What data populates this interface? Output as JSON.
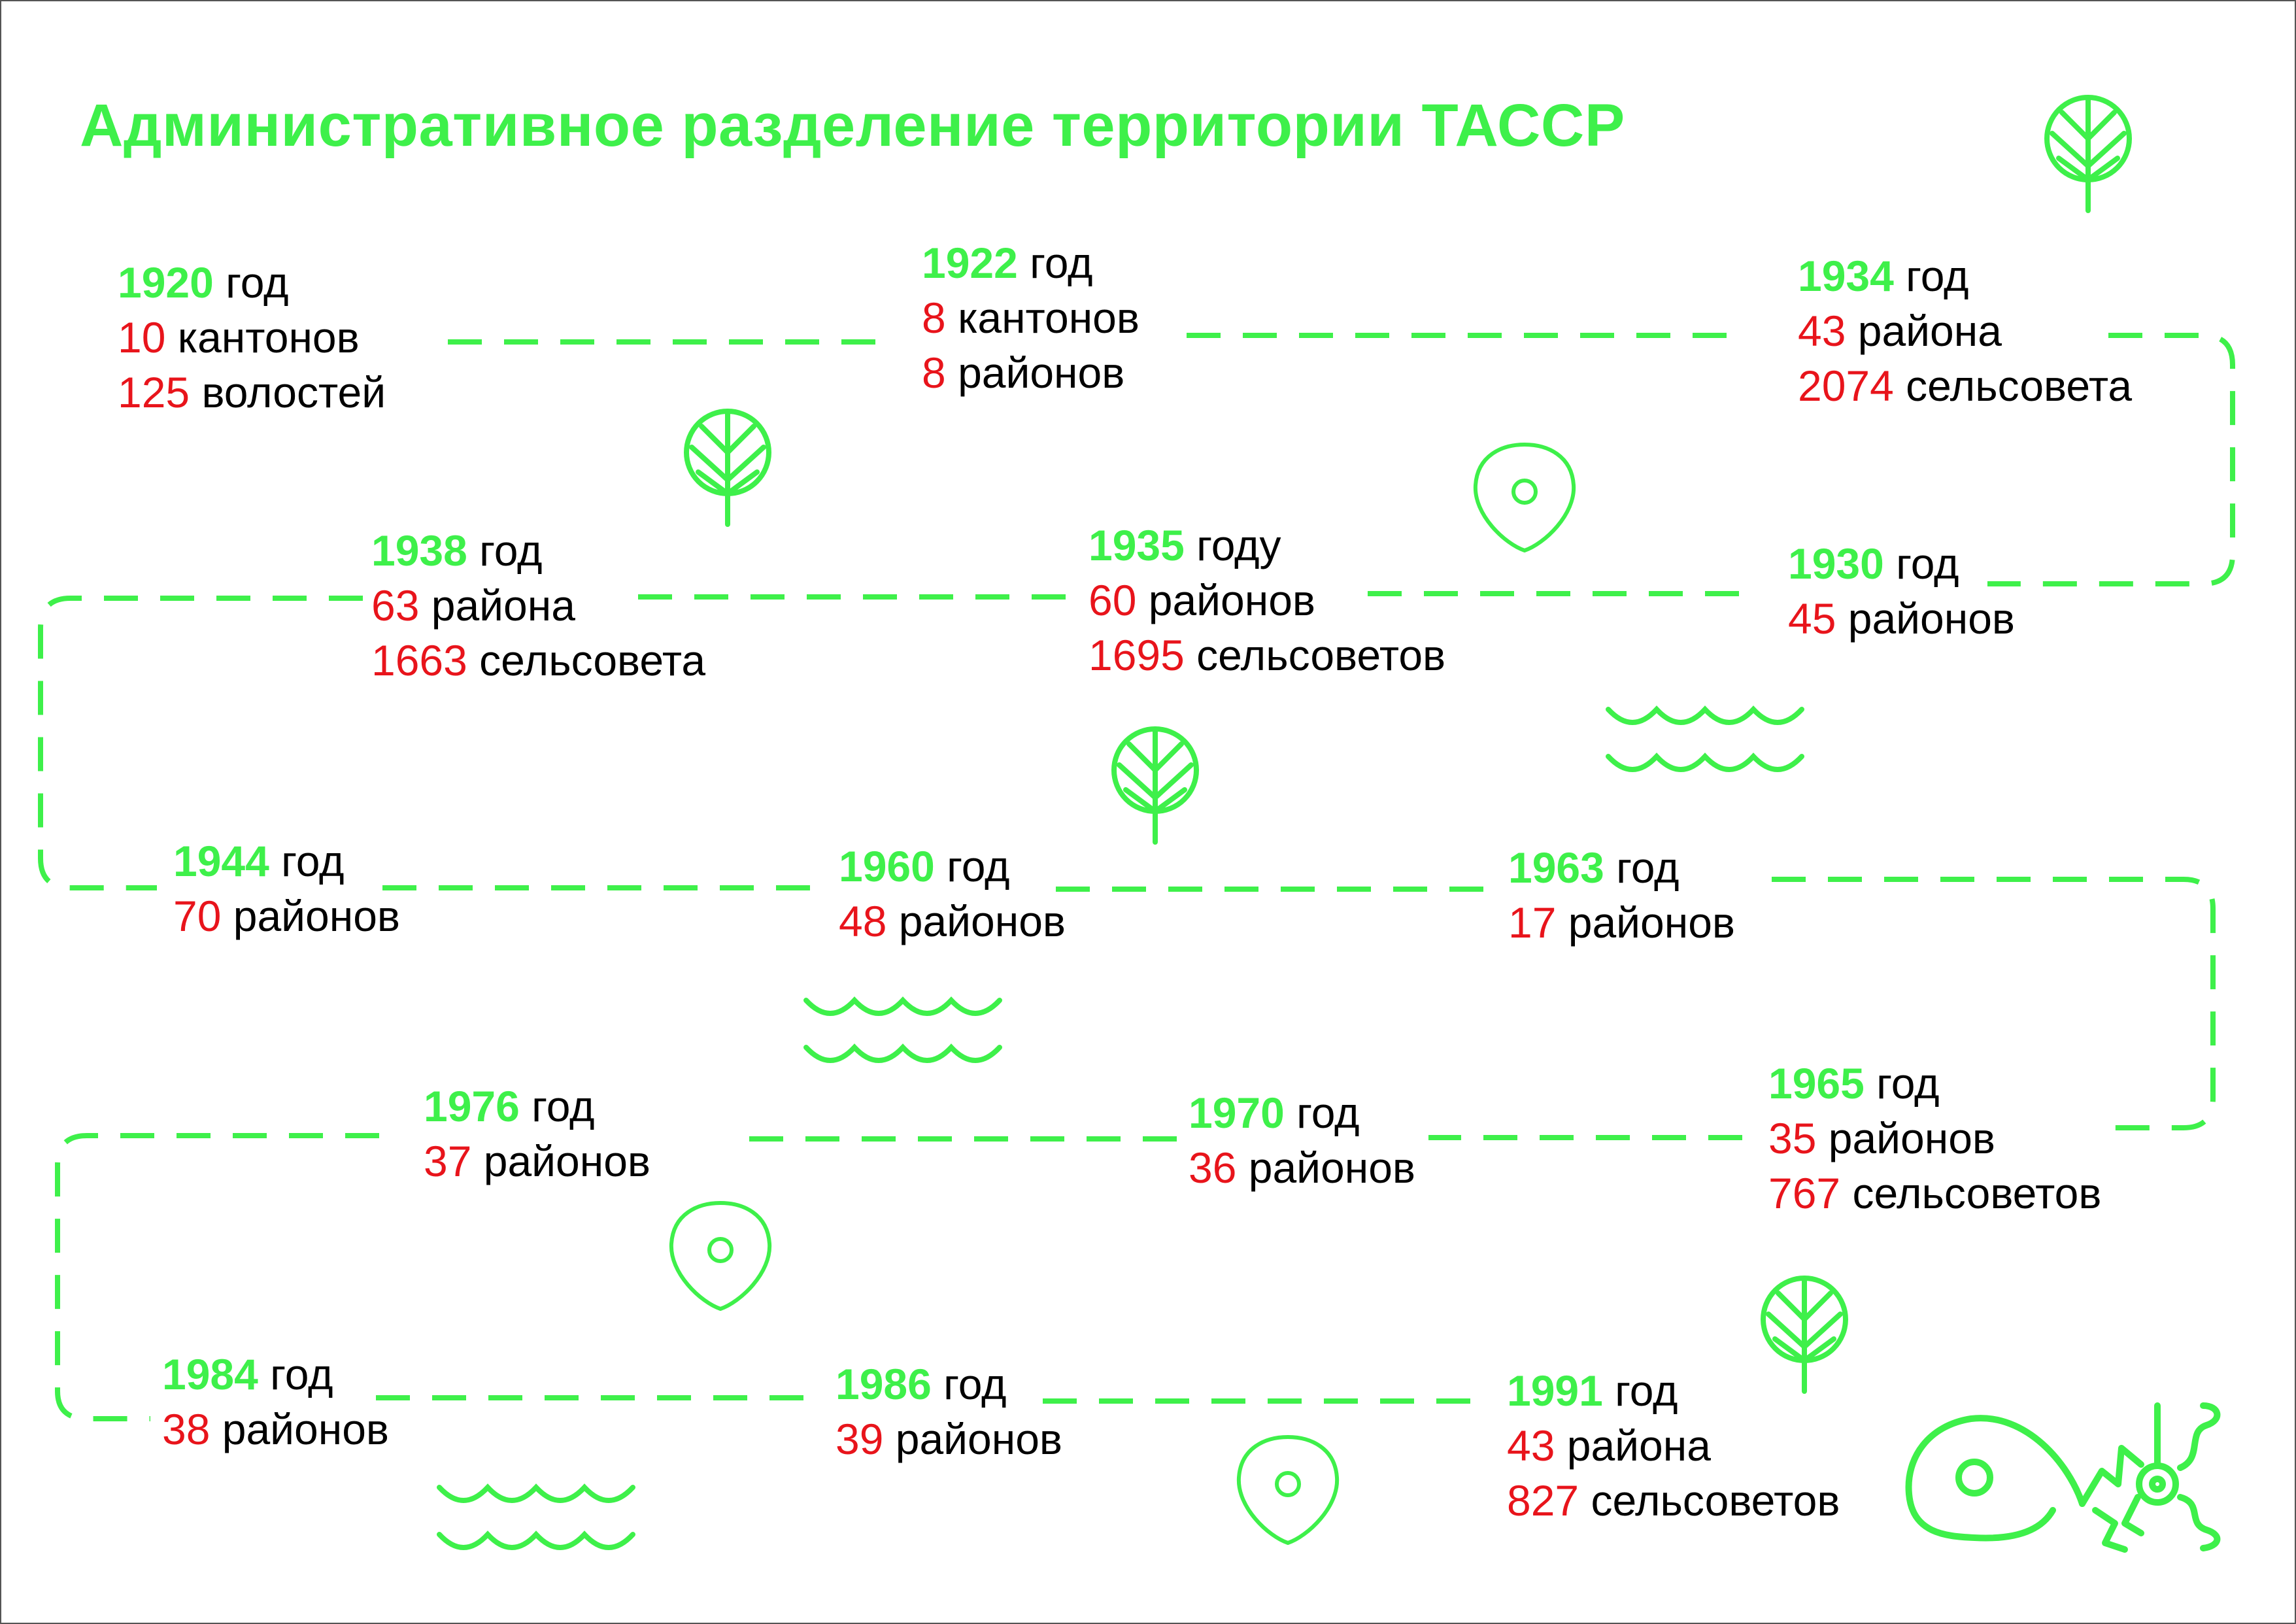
{
  "colors": {
    "accent": "#3ef04a",
    "number": "#e8141b",
    "text": "#000000"
  },
  "title": "Административное разделение территории ТАССР",
  "entries": [
    {
      "year": "1920",
      "year_word": "год",
      "lines": [
        {
          "num": "10",
          "text": "кантонов"
        },
        {
          "num": "125",
          "text": "волостей"
        }
      ]
    },
    {
      "year": "1922",
      "year_word": "год",
      "lines": [
        {
          "num": "8",
          "text": "кантонов"
        },
        {
          "num": "8",
          "text": "районов"
        }
      ]
    },
    {
      "year": "1934",
      "year_word": "год",
      "lines": [
        {
          "num": "43",
          "text": "района"
        },
        {
          "num": "2074",
          "text": "сельсовета"
        }
      ]
    },
    {
      "year": "1938",
      "year_word": "год",
      "lines": [
        {
          "num": "63",
          "text": "района"
        },
        {
          "num": "1663",
          "text": "сельсовета"
        }
      ]
    },
    {
      "year": "1935",
      "year_word": "году",
      "lines": [
        {
          "num": "60",
          "text": "районов"
        },
        {
          "num": "1695",
          "text": "сельсоветов"
        }
      ]
    },
    {
      "year": "1930",
      "year_word": "год",
      "lines": [
        {
          "num": "45",
          "text": "районов"
        }
      ]
    },
    {
      "year": "1944",
      "year_word": "год",
      "lines": [
        {
          "num": "70",
          "text": "районов"
        }
      ]
    },
    {
      "year": "1960",
      "year_word": "год",
      "lines": [
        {
          "num": "48",
          "text": "районов"
        }
      ]
    },
    {
      "year": "1963",
      "year_word": "год",
      "lines": [
        {
          "num": "17",
          "text": "районов"
        }
      ]
    },
    {
      "year": "1976",
      "year_word": "год",
      "lines": [
        {
          "num": "37",
          "text": "районов"
        }
      ]
    },
    {
      "year": "1970",
      "year_word": "год",
      "lines": [
        {
          "num": "36",
          "text": "районов"
        }
      ]
    },
    {
      "year": "1965",
      "year_word": "год",
      "lines": [
        {
          "num": "35",
          "text": "районов"
        },
        {
          "num": "767",
          "text": "сельсоветов"
        }
      ]
    },
    {
      "year": "1984",
      "year_word": "год",
      "lines": [
        {
          "num": "38",
          "text": "районов"
        }
      ]
    },
    {
      "year": "1986",
      "year_word": "год",
      "lines": [
        {
          "num": "39",
          "text": "районов"
        }
      ]
    },
    {
      "year": "1991",
      "year_word": "год",
      "lines": [
        {
          "num": "43",
          "text": "района"
        },
        {
          "num": "827",
          "text": "сельсоветов"
        }
      ]
    }
  ],
  "icons": {
    "trees": [
      "tree-icon",
      "tree-icon",
      "tree-icon",
      "tree-icon"
    ],
    "pins": [
      "location-pin-icon",
      "location-pin-icon",
      "location-pin-icon"
    ],
    "waves": [
      "waves-icon",
      "waves-icon",
      "waves-icon"
    ],
    "logo": "logo-icon"
  }
}
